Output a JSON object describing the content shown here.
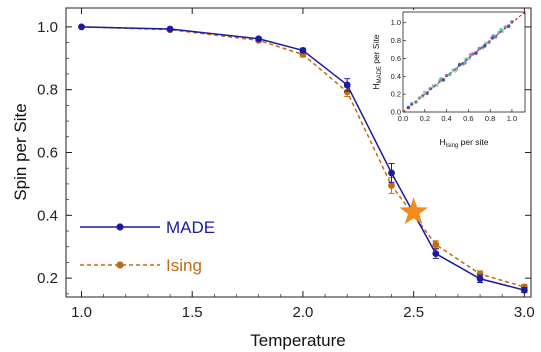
{
  "chart_data": [
    {
      "type": "line",
      "title": "",
      "xlabel": "Temperature",
      "ylabel": "Spin per Site",
      "xlim": [
        0.93,
        3.03
      ],
      "ylim": [
        0.14,
        1.06
      ],
      "xticks": [
        "1.0",
        "1.5",
        "2.0",
        "2.5",
        "3.0"
      ],
      "yticks": [
        "0.2",
        "0.4",
        "0.6",
        "0.8",
        "1.0"
      ],
      "legend_position": "lower-left",
      "x": [
        1.0,
        1.4,
        1.8,
        2.0,
        2.2,
        2.4,
        2.6,
        2.8,
        3.0
      ],
      "series": [
        {
          "name": "MADE",
          "color": "#1a1aa6",
          "style": "solid",
          "values": [
            1.0,
            0.993,
            0.962,
            0.925,
            0.815,
            0.535,
            0.278,
            0.198,
            0.162
          ],
          "errors": [
            0.002,
            0.003,
            0.005,
            0.007,
            0.02,
            0.03,
            0.015,
            0.012,
            0.008
          ]
        },
        {
          "name": "Ising",
          "color": "#c46a10",
          "style": "dashed",
          "values": [
            1.0,
            0.991,
            0.957,
            0.912,
            0.793,
            0.495,
            0.307,
            0.213,
            0.172
          ],
          "errors": [
            0.002,
            0.003,
            0.006,
            0.008,
            0.015,
            0.025,
            0.012,
            0.01,
            0.008
          ]
        }
      ],
      "annotations": [
        {
          "marker": "star",
          "color": "#f28c1a",
          "x": 2.5,
          "y": 0.41
        }
      ]
    },
    {
      "type": "scatter",
      "title": "",
      "xlabel": "H_Ising per site",
      "ylabel": "H_MADE per Site",
      "xlim": [
        0.0,
        1.12
      ],
      "ylim": [
        0.0,
        1.12
      ],
      "xticks": [
        "0.0",
        "0.2",
        "0.4",
        "0.6",
        "0.8",
        "1.0"
      ],
      "yticks": [
        "0.0",
        "0.2",
        "0.4",
        "0.6",
        "0.8",
        "1.0"
      ],
      "reference_line": {
        "type": "identity",
        "color": "#b3262a",
        "style": "dashed"
      },
      "point_colors": [
        "#1d3fa8",
        "#3f7fd6",
        "#49b8b0",
        "#7bd0c8",
        "#8a7fd0"
      ],
      "points": [
        [
          0.05,
          0.05
        ],
        [
          0.08,
          0.09
        ],
        [
          0.12,
          0.11
        ],
        [
          0.15,
          0.16
        ],
        [
          0.18,
          0.18
        ],
        [
          0.22,
          0.21
        ],
        [
          0.25,
          0.26
        ],
        [
          0.28,
          0.29
        ],
        [
          0.31,
          0.3
        ],
        [
          0.34,
          0.35
        ],
        [
          0.37,
          0.36
        ],
        [
          0.4,
          0.41
        ],
        [
          0.43,
          0.42
        ],
        [
          0.46,
          0.47
        ],
        [
          0.49,
          0.48
        ],
        [
          0.52,
          0.53
        ],
        [
          0.55,
          0.54
        ],
        [
          0.58,
          0.59
        ],
        [
          0.61,
          0.6
        ],
        [
          0.64,
          0.65
        ],
        [
          0.67,
          0.66
        ],
        [
          0.7,
          0.71
        ],
        [
          0.73,
          0.72
        ],
        [
          0.76,
          0.77
        ],
        [
          0.79,
          0.78
        ],
        [
          0.82,
          0.83
        ],
        [
          0.85,
          0.84
        ],
        [
          0.88,
          0.89
        ],
        [
          0.91,
          0.9
        ],
        [
          0.94,
          0.95
        ],
        [
          0.97,
          0.96
        ],
        [
          1.0,
          1.01
        ],
        [
          0.35,
          0.37
        ],
        [
          0.48,
          0.46
        ],
        [
          0.62,
          0.64
        ],
        [
          0.75,
          0.74
        ],
        [
          0.83,
          0.85
        ],
        [
          0.9,
          0.92
        ],
        [
          0.2,
          0.22
        ],
        [
          0.57,
          0.55
        ]
      ]
    }
  ]
}
